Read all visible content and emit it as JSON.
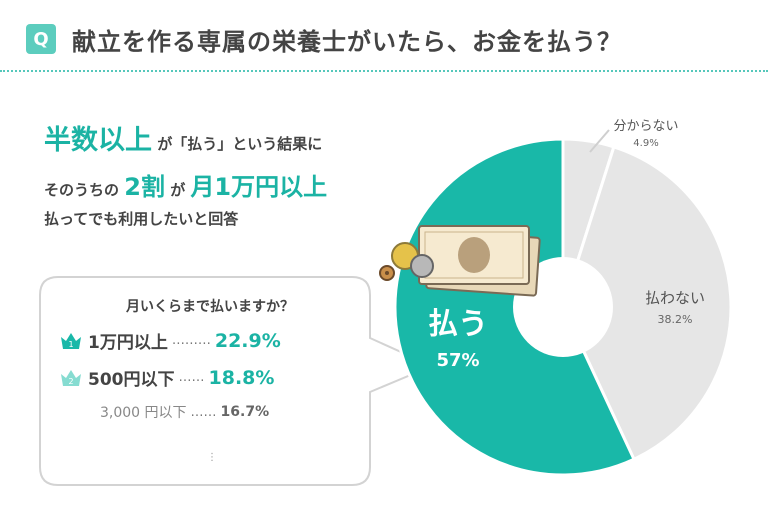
{
  "header": {
    "badge": "Q",
    "question": "献立を作る専属の栄養士がいたら、お金を払う？"
  },
  "summary": {
    "line1_highlight": "半数以上",
    "line1_rest": "が「払う」という結果に",
    "line2_pre": "そのうちの",
    "line2_highlight1": "2割",
    "line2_mid": "が",
    "line2_highlight2": "月1万円以上",
    "line3": "払ってでも利用したいと回答"
  },
  "detail": {
    "title": "月いくらまで払いますか？",
    "rows": [
      {
        "rank": "1",
        "label": "1万円以上",
        "dots": "………",
        "value": "22.9%"
      },
      {
        "rank": "2",
        "label": "500円以下",
        "dots": "……",
        "value": "18.8%"
      },
      {
        "rank": "",
        "label": "3,000 円以下",
        "dots": "……",
        "value": "16.7%"
      }
    ],
    "more": "⋮"
  },
  "colors": {
    "accent": "#1bb3a4",
    "pie_pay": "#19b8a8",
    "pie_other": "#e6e6e6",
    "badge": "#5ccdbe"
  },
  "chart_data": {
    "type": "pie",
    "variant": "donut",
    "slices": [
      {
        "label": "払う",
        "value": 57,
        "display": "57%"
      },
      {
        "label": "払わない",
        "value": 38.2,
        "display": "38.2%"
      },
      {
        "label": "分からない",
        "value": 4.9,
        "display": "4.9%"
      }
    ]
  }
}
